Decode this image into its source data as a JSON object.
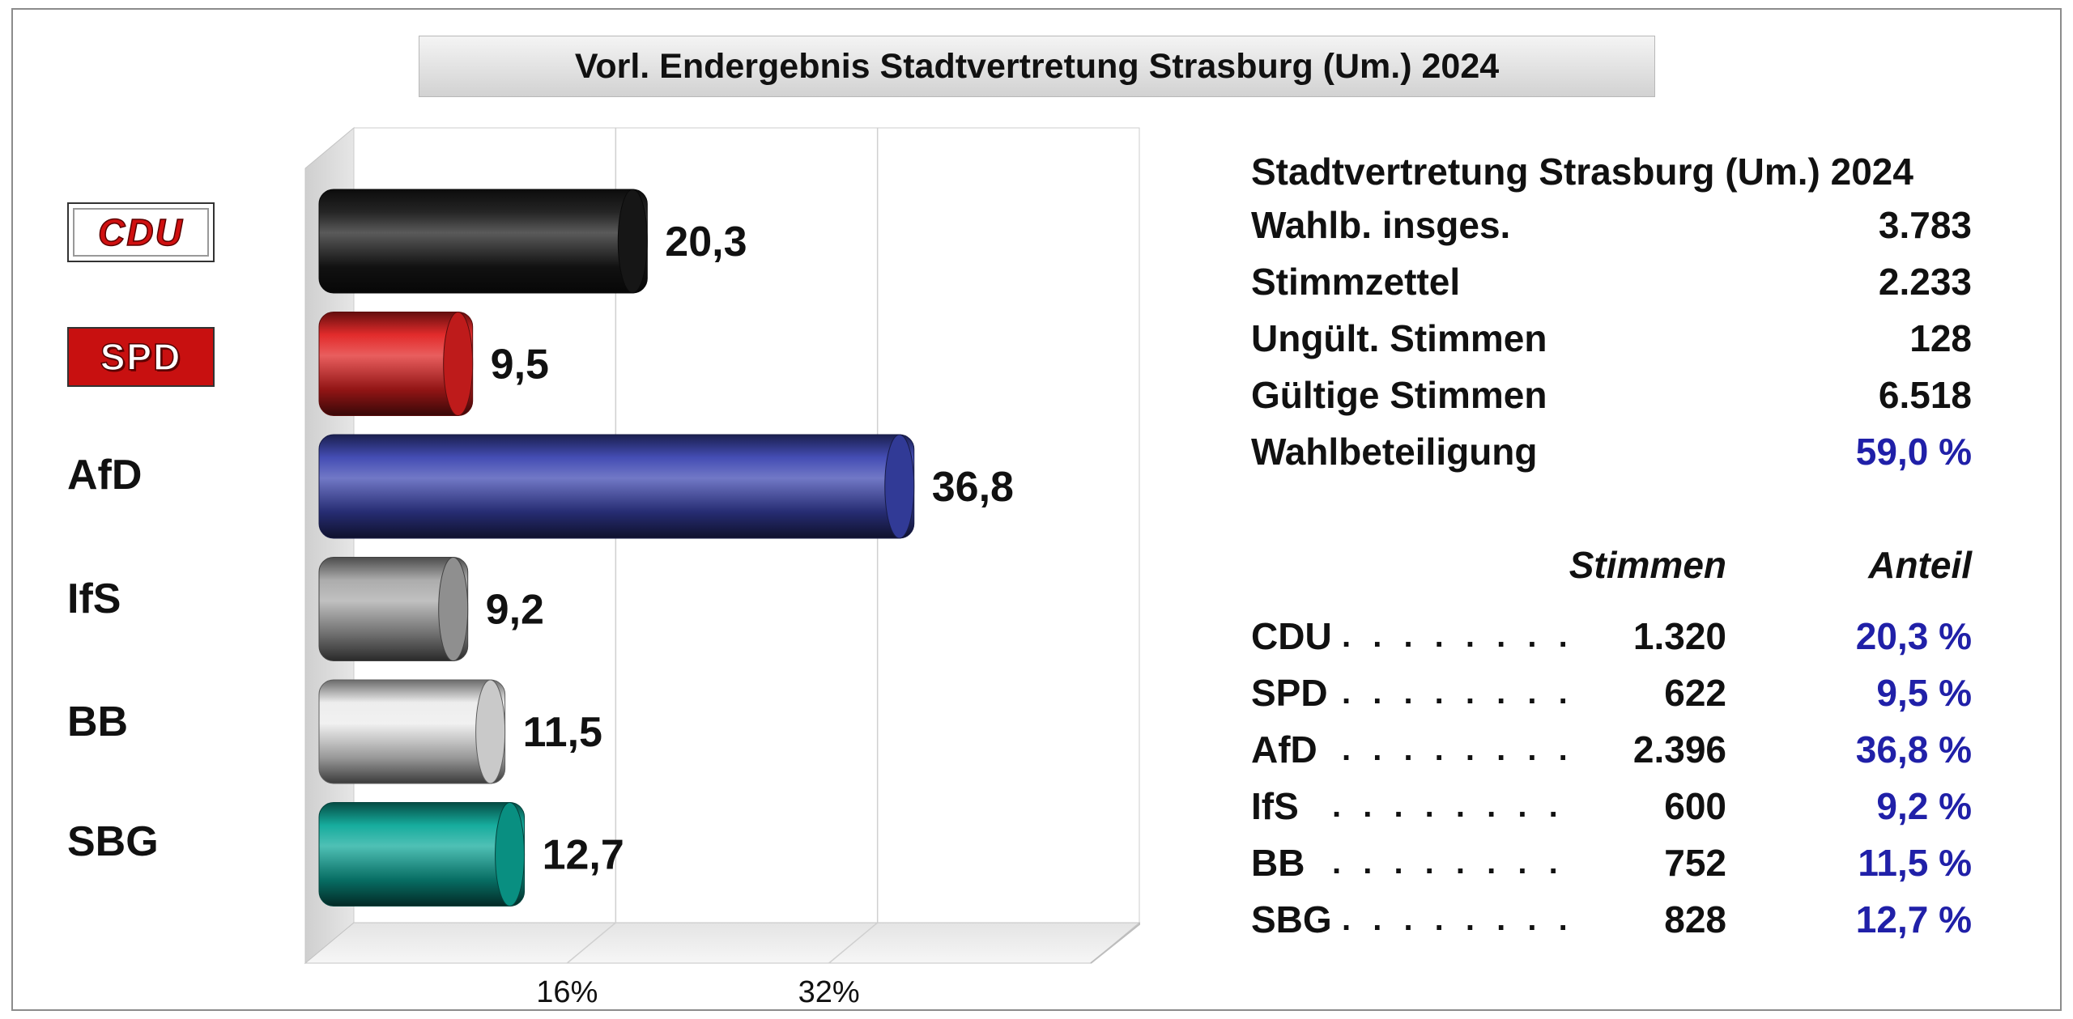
{
  "title": "Vorl. Endergebnis Stadtvertretung Strasburg (Um.) 2024",
  "chart_data": {
    "type": "bar",
    "orientation": "horizontal",
    "style": "3d-cylinder",
    "categories": [
      "CDU",
      "SPD",
      "AfD",
      "IfS",
      "BB",
      "SBG"
    ],
    "values": [
      20.3,
      9.5,
      36.8,
      9.2,
      11.5,
      12.7
    ],
    "value_labels": [
      "20,3",
      "9,5",
      "36,8",
      "9,2",
      "11,5",
      "12,7"
    ],
    "xlim": [
      0,
      48
    ],
    "xticks": [
      16,
      32
    ],
    "xtick_labels": [
      "16%",
      "32%"
    ],
    "grid": true,
    "colors": [
      "#1a1a1a",
      "#e02020",
      "#3a44b0",
      "#a8a8a8",
      "#ececec",
      "#0aa898"
    ]
  },
  "party_logos": {
    "cdu": "CDU",
    "spd": "SPD"
  },
  "party_labels": {
    "afd": "AfD",
    "ifs": "IfS",
    "bb": "BB",
    "sbg": "SBG"
  },
  "stats": {
    "heading": "Stadtvertretung Strasburg (Um.) 2024",
    "rows": [
      {
        "label": "Wahlb. insges.",
        "value": "3.783"
      },
      {
        "label": "Stimmzettel",
        "value": "2.233"
      },
      {
        "label": "Ungült. Stimmen",
        "value": "128"
      },
      {
        "label": "Gültige Stimmen",
        "value": "6.518"
      },
      {
        "label": "Wahlbeteiligung",
        "value": "59,0 %"
      }
    ]
  },
  "results": {
    "votes_header": "Stimmen",
    "share_header": "Anteil",
    "rows": [
      {
        "party": "CDU",
        "dots": ". . . . . . . .",
        "votes": "1.320",
        "share": "20,3 %"
      },
      {
        "party": "SPD",
        "dots": ". . . . . . . .",
        "votes": "622",
        "share": "9,5 %"
      },
      {
        "party": "AfD",
        "dots": ". . . . . . . .",
        "votes": "2.396",
        "share": "36,8 %"
      },
      {
        "party": "IfS",
        "dots": ". . . . . . . .",
        "votes": "600",
        "share": "9,2 %"
      },
      {
        "party": "BB",
        "dots": ". . . . . . . .",
        "votes": "752",
        "share": "11,5 %"
      },
      {
        "party": "SBG",
        "dots": ". . . . . . . .",
        "votes": "828",
        "share": "12,7 %"
      }
    ]
  }
}
